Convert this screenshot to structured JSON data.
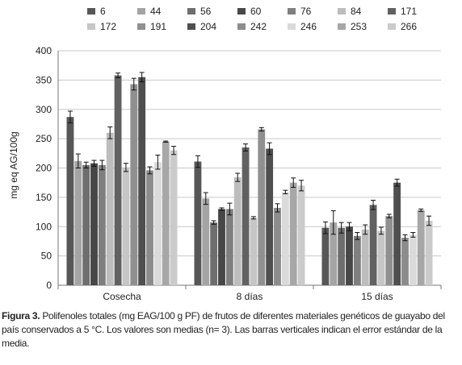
{
  "chart_data": {
    "type": "bar",
    "categories": [
      "Cosecha",
      "8 días",
      "15 días"
    ],
    "ylabel": "mg eq AG/100g",
    "ylim": [
      0,
      400
    ],
    "yticks": [
      0,
      50,
      100,
      150,
      200,
      250,
      300,
      350,
      400
    ],
    "grid": true,
    "legend_position": "top",
    "series": [
      {
        "name": "6",
        "color": "#575757",
        "values": [
          287,
          211,
          98
        ],
        "errors": [
          10,
          10,
          10
        ]
      },
      {
        "name": "44",
        "color": "#a4a4a4",
        "values": [
          212,
          148,
          107
        ],
        "errors": [
          12,
          10,
          20
        ]
      },
      {
        "name": "56",
        "color": "#6e6e6e",
        "values": [
          205,
          107,
          98
        ],
        "errors": [
          5,
          3,
          9
        ]
      },
      {
        "name": "60",
        "color": "#474747",
        "values": [
          208,
          130,
          100
        ],
        "errors": [
          5,
          2,
          7
        ]
      },
      {
        "name": "76",
        "color": "#7f7f7f",
        "values": [
          205,
          130,
          84
        ],
        "errors": [
          8,
          10,
          6
        ]
      },
      {
        "name": "84",
        "color": "#bdbdbd",
        "values": [
          260,
          184,
          95
        ],
        "errors": [
          10,
          7,
          8
        ]
      },
      {
        "name": "171",
        "color": "#616161",
        "values": [
          358,
          235,
          137
        ],
        "errors": [
          4,
          6,
          8
        ]
      },
      {
        "name": "172",
        "color": "#c6c6c6",
        "values": [
          201,
          115,
          93
        ],
        "errors": [
          7,
          2,
          6
        ]
      },
      {
        "name": "191",
        "color": "#909090",
        "values": [
          343,
          266,
          118
        ],
        "errors": [
          10,
          3,
          3
        ]
      },
      {
        "name": "204",
        "color": "#4f4f4f",
        "values": [
          355,
          233,
          175
        ],
        "errors": [
          8,
          10,
          6
        ]
      },
      {
        "name": "242",
        "color": "#8c8c8c",
        "values": [
          196,
          132,
          81
        ],
        "errors": [
          6,
          7,
          5
        ]
      },
      {
        "name": "246",
        "color": "#dadada",
        "values": [
          210,
          159,
          86
        ],
        "errors": [
          12,
          3,
          4
        ]
      },
      {
        "name": "253",
        "color": "#a7a7a7",
        "values": [
          245,
          175,
          128
        ],
        "errors": [
          1,
          8,
          2
        ]
      },
      {
        "name": "266",
        "color": "#cbcbcb",
        "values": [
          230,
          170,
          110
        ],
        "errors": [
          7,
          9,
          8
        ]
      }
    ]
  },
  "caption": {
    "label": "Figura 3.",
    "text": " Polifenoles totales (mg EAG/100 g PF) de frutos de diferentes materiales genéticos de guayabo del país conservados a 5 °C. Los valores son medias (n= 3). Las barras verticales indican el error estándar de la media."
  }
}
